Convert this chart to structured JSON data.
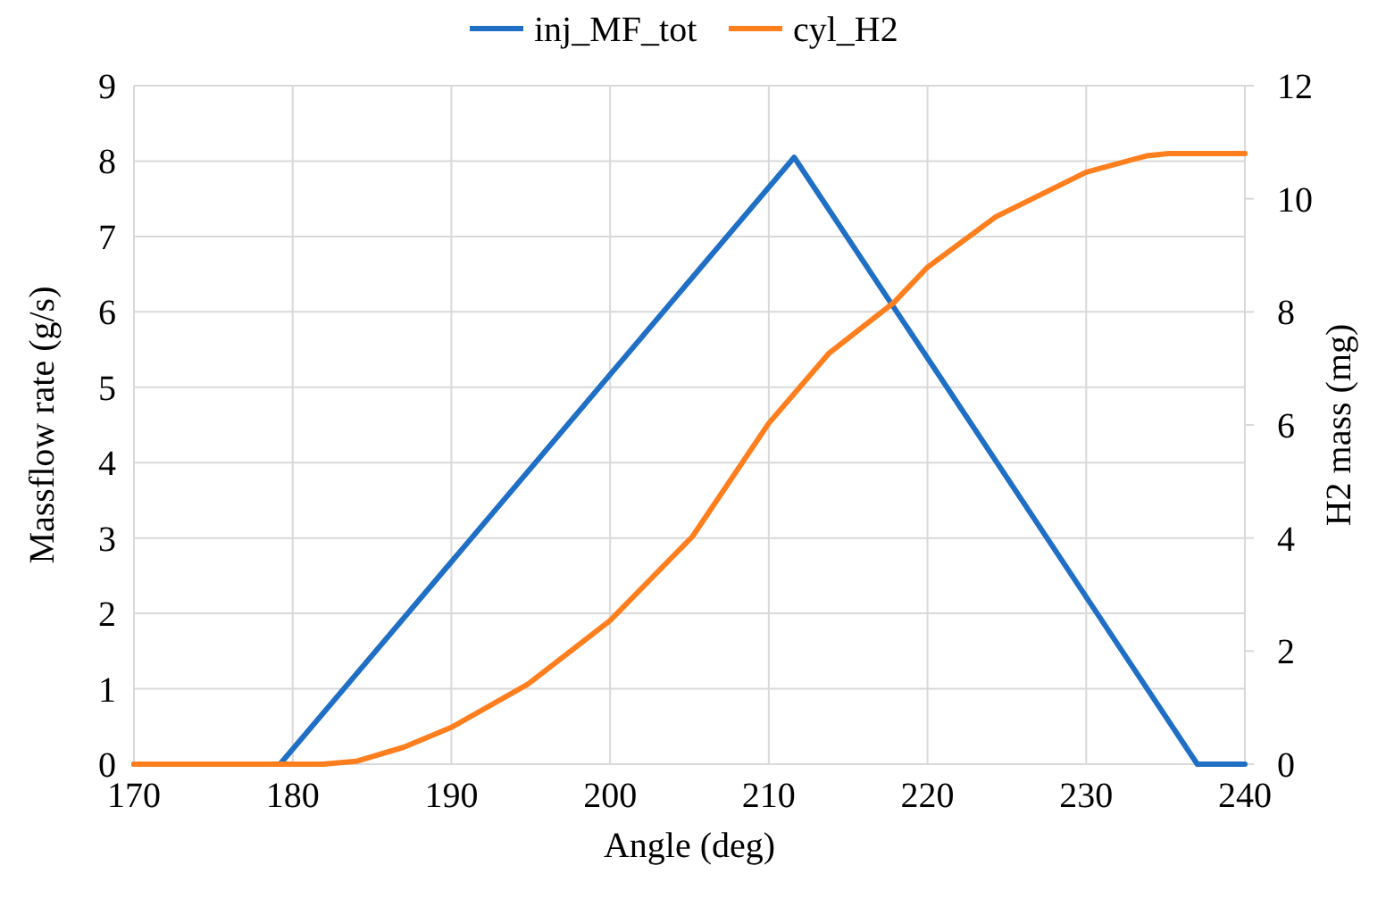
{
  "chart_data": {
    "type": "line",
    "xlabel": "Angle (deg)",
    "ylabel": "Massflow rate (g/s)",
    "y2label": "H2 mass (mg)",
    "legend": "top",
    "grid": true,
    "xlim": [
      170,
      240
    ],
    "xticks": [
      170,
      180,
      190,
      200,
      210,
      220,
      230,
      240
    ],
    "ylim": [
      0,
      9
    ],
    "yticks": [
      0,
      1,
      2,
      3,
      4,
      5,
      6,
      7,
      8,
      9
    ],
    "y2lim": [
      0,
      12
    ],
    "y2ticks": [
      0,
      2,
      4,
      6,
      8,
      10,
      12
    ],
    "series": [
      {
        "name": "inj_MF_tot",
        "color": "#1f6fc5",
        "x": [
          170,
          179.2,
          211.6,
          237,
          240
        ],
        "values": [
          0,
          0,
          8.05,
          0,
          0
        ]
      },
      {
        "name": "cyl_H2",
        "color": "#ff7f1f",
        "axis": "y2",
        "x": [
          170,
          181.9,
          184,
          187,
          190,
          194.8,
          200,
          205.2,
          210,
          213.8,
          217.9,
          220,
          224.3,
          230,
          233.8,
          235.2,
          240
        ],
        "values": [
          0,
          0,
          0.05,
          0.3,
          0.65,
          1.41,
          2.54,
          4.03,
          6.03,
          7.27,
          8.17,
          8.79,
          9.68,
          10.47,
          10.76,
          10.8,
          10.8
        ]
      }
    ]
  }
}
